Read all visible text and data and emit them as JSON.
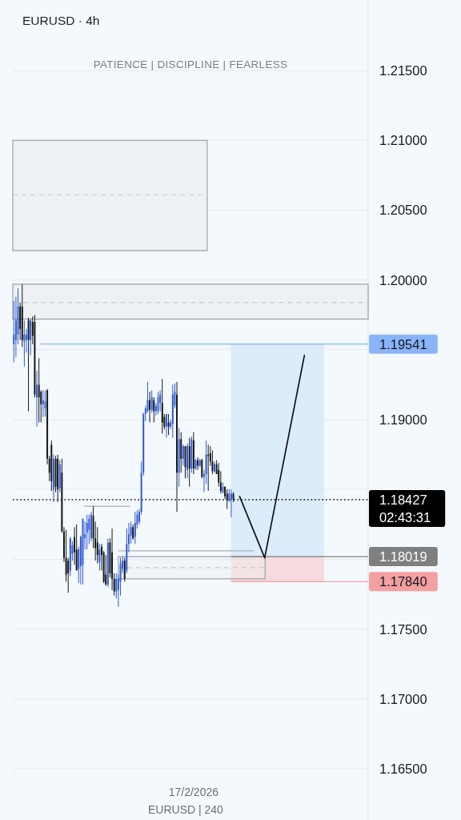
{
  "chart_data": {
    "type": "candlestick",
    "title": "EURUSD · 4h",
    "subtitle": "PATIENCE | DISCIPLINE | FEARLESS",
    "categories": [
      null,
      null,
      null,
      null,
      null,
      null,
      null,
      null,
      null,
      null,
      null,
      null,
      null,
      null,
      null,
      null,
      null,
      null,
      null,
      null,
      null,
      null,
      null,
      null,
      null,
      null,
      null,
      null,
      null,
      null,
      null,
      null,
      null,
      null,
      null,
      null,
      null,
      null,
      null,
      null,
      null,
      null,
      null,
      null,
      null,
      null,
      null,
      null,
      null,
      null,
      null,
      null,
      null,
      null,
      null,
      null,
      null,
      null,
      null,
      null,
      null,
      null,
      null,
      null,
      null,
      null,
      null,
      null,
      null,
      null,
      null,
      null,
      null,
      null,
      null,
      null,
      null,
      null,
      null,
      null,
      null,
      null,
      null,
      null,
      null,
      null,
      null,
      null,
      null,
      null,
      null,
      null,
      null,
      null,
      null,
      null,
      null,
      null,
      null,
      null,
      null,
      null,
      null,
      null,
      null,
      null,
      null,
      null,
      null,
      null,
      null,
      null,
      null,
      null,
      null,
      null,
      null,
      null,
      null,
      null,
      null,
      null,
      null,
      null,
      null,
      null,
      null,
      null,
      null,
      null,
      null,
      null,
      null,
      null,
      null,
      null,
      null,
      null,
      null,
      null,
      null,
      null,
      null,
      null,
      null,
      null,
      null,
      null,
      null,
      null,
      null,
      null,
      null,
      null,
      null,
      null,
      null,
      null,
      null,
      null,
      null,
      null,
      null,
      null,
      null,
      null,
      null,
      null,
      null,
      null
    ],
    "series": [
      {
        "type": "line",
        "color": "#141414",
        "values": [
          null,
          null,
          null,
          null,
          null,
          null,
          null,
          null,
          null,
          null,
          null,
          null,
          null,
          null,
          null,
          null,
          null,
          null,
          null,
          null,
          null,
          null,
          null,
          null,
          null,
          null,
          null,
          null,
          null,
          null,
          null,
          null,
          null,
          null,
          null,
          null,
          null,
          null,
          null,
          null,
          null,
          null,
          null,
          null,
          null,
          null,
          null,
          null,
          null,
          null,
          null,
          null,
          null,
          null,
          null,
          null,
          null,
          null,
          null,
          null,
          null,
          null,
          null,
          null,
          null,
          null,
          null,
          null,
          null,
          null,
          null,
          null,
          null,
          null,
          null,
          null,
          null,
          null,
          null,
          null,
          null,
          null,
          null,
          null,
          null,
          null,
          null,
          null,
          null,
          null,
          null,
          null,
          null,
          null,
          null,
          null,
          null,
          null,
          null,
          null,
          null,
          null,
          null,
          null,
          null,
          null,
          null,
          null,
          1.1845,
          null,
          null,
          null,
          null,
          null,
          null,
          null,
          null,
          null,
          null,
          null,
          1.1801,
          null,
          null,
          null,
          null,
          null,
          null,
          null,
          null,
          null,
          null,
          null,
          null,
          null,
          null,
          null,
          null,
          null,
          null,
          1.1946,
          null,
          null,
          null,
          null,
          null,
          null,
          null,
          null,
          null,
          null,
          null,
          null,
          null,
          null,
          null,
          null,
          null,
          null,
          null,
          null,
          null,
          null,
          null,
          null,
          null,
          null,
          null,
          null,
          null,
          null
        ]
      },
      {
        "type": "candlestick",
        "ohlc": [
          [
            1.1954,
            1.1985,
            1.1941,
            1.1961
          ],
          [
            1.1957,
            1.1988,
            1.1945,
            1.1971
          ],
          [
            1.1961,
            1.1994,
            1.1954,
            1.1981
          ],
          [
            1.1981,
            1.1984,
            1.1957,
            1.1965
          ],
          [
            1.1981,
            1.1997,
            1.1952,
            1.1957
          ],
          [
            1.1956,
            1.1971,
            1.1938,
            1.1961
          ],
          [
            1.1957,
            1.1965,
            1.1948,
            1.1961
          ],
          [
            1.1971,
            1.1973,
            1.1906,
            1.1957
          ],
          [
            1.1957,
            1.1972,
            1.1946,
            1.1971
          ],
          [
            1.197,
            1.1974,
            1.1954,
            1.196
          ],
          [
            1.197,
            1.1975,
            1.1916,
            1.1918
          ],
          [
            1.1916,
            1.1935,
            1.1895,
            1.1925
          ],
          [
            1.1925,
            1.1944,
            1.1898,
            1.1916
          ],
          [
            1.192,
            1.1921,
            1.1898,
            1.1911
          ],
          [
            1.1911,
            1.1921,
            1.1902,
            1.1914
          ],
          [
            1.1908,
            1.1921,
            1.1902,
            1.1913
          ],
          [
            1.1921,
            1.1922,
            1.1868,
            1.1872
          ],
          [
            1.1872,
            1.1874,
            1.1856,
            1.1862
          ],
          [
            1.1882,
            1.1885,
            1.1849,
            1.1856
          ],
          [
            1.185,
            1.1875,
            1.1841,
            1.1872
          ],
          [
            1.1872,
            1.1874,
            1.1848,
            1.1852
          ],
          [
            1.1872,
            1.1875,
            1.1841,
            1.185
          ],
          [
            1.1851,
            1.1871,
            1.1848,
            1.1868
          ],
          [
            1.1862,
            1.1872,
            1.1819,
            1.182
          ],
          [
            1.182,
            1.1823,
            1.1798,
            1.1801
          ],
          [
            1.1801,
            1.1821,
            1.1784,
            1.1789
          ],
          [
            1.1799,
            1.1801,
            1.1776,
            1.179
          ],
          [
            1.1792,
            1.1816,
            1.1788,
            1.1815
          ],
          [
            1.1804,
            1.1813,
            1.1799,
            1.181
          ],
          [
            1.1816,
            1.1823,
            1.1796,
            1.1805
          ],
          [
            1.1807,
            1.1825,
            1.1792,
            1.1792
          ],
          [
            1.1793,
            1.1809,
            1.1783,
            1.1807
          ],
          [
            1.1795,
            1.1817,
            1.1782,
            1.1816
          ],
          [
            1.1796,
            1.1829,
            1.1782,
            1.1829
          ],
          [
            1.1815,
            1.1827,
            1.1807,
            1.1818
          ],
          [
            1.1819,
            1.1832,
            1.1807,
            1.1826
          ],
          [
            1.1821,
            1.1832,
            1.1811,
            1.1829
          ],
          [
            1.1815,
            1.1834,
            1.1813,
            1.1832
          ],
          [
            1.1831,
            1.1838,
            1.1808,
            1.1815
          ],
          [
            1.1815,
            1.1827,
            1.1799,
            1.1808
          ],
          [
            1.1812,
            1.1823,
            1.1797,
            1.1803
          ],
          [
            1.1798,
            1.1811,
            1.1792,
            1.1807
          ],
          [
            1.1809,
            1.1811,
            1.1792,
            1.1803
          ],
          [
            1.1805,
            1.1806,
            1.1783,
            1.1784
          ],
          [
            1.1789,
            1.1803,
            1.1781,
            1.1782
          ],
          [
            1.1782,
            1.1815,
            1.178,
            1.1812
          ],
          [
            1.1812,
            1.1815,
            1.1787,
            1.179
          ],
          [
            1.1805,
            1.1822,
            1.1778,
            1.1786
          ],
          [
            1.1786,
            1.179,
            1.1774,
            1.1777
          ],
          [
            1.1777,
            1.179,
            1.1772,
            1.1786
          ],
          [
            1.1778,
            1.1789,
            1.1766,
            1.1786
          ],
          [
            1.1784,
            1.1801,
            1.1774,
            1.1797
          ],
          [
            1.1793,
            1.1802,
            1.179,
            1.1799
          ],
          [
            1.1799,
            1.1801,
            1.1784,
            1.1786
          ],
          [
            1.1792,
            1.1822,
            1.179,
            1.1811
          ],
          [
            1.1811,
            1.1826,
            1.1805,
            1.1818
          ],
          [
            1.1817,
            1.1827,
            1.1811,
            1.1823
          ],
          [
            1.1823,
            1.1825,
            1.1814,
            1.1815
          ],
          [
            1.1816,
            1.1834,
            1.1811,
            1.1826
          ],
          [
            1.1825,
            1.1835,
            1.1822,
            1.1832
          ],
          [
            1.1827,
            1.1836,
            1.1825,
            1.1834
          ],
          [
            1.1834,
            1.187,
            1.1832,
            1.1862
          ],
          [
            1.1862,
            1.1905,
            1.186,
            1.1904
          ],
          [
            1.1904,
            1.191,
            1.1899,
            1.1908
          ],
          [
            1.1906,
            1.1927,
            1.1905,
            1.1914
          ],
          [
            1.1914,
            1.192,
            1.1898,
            1.1907
          ],
          [
            1.1907,
            1.1921,
            1.1905,
            1.1916
          ],
          [
            1.1914,
            1.1916,
            1.1898,
            1.1906
          ],
          [
            1.1906,
            1.1912,
            1.1903,
            1.191
          ],
          [
            1.1906,
            1.192,
            1.1904,
            1.1916
          ],
          [
            1.1912,
            1.1921,
            1.1906,
            1.1918
          ],
          [
            1.1912,
            1.1929,
            1.189,
            1.1898
          ],
          [
            1.1902,
            1.1904,
            1.1893,
            1.1895
          ],
          [
            1.1895,
            1.1904,
            1.1887,
            1.1904
          ],
          [
            1.1898,
            1.1904,
            1.1889,
            1.1895
          ],
          [
            1.1895,
            1.19,
            1.1893,
            1.1898
          ],
          [
            1.1897,
            1.1925,
            1.1887,
            1.1918
          ],
          [
            1.191,
            1.1926,
            1.1908,
            1.192
          ],
          [
            1.1918,
            1.1927,
            1.1834,
            1.1862
          ],
          [
            1.1862,
            1.1894,
            1.1852,
            1.1886
          ],
          [
            1.1886,
            1.1891,
            1.1862,
            1.1872
          ],
          [
            1.1872,
            1.1882,
            1.1867,
            1.1881
          ],
          [
            1.1881,
            1.1881,
            1.1858,
            1.1866
          ],
          [
            1.1864,
            1.1883,
            1.1858,
            1.1881
          ],
          [
            1.1881,
            1.1887,
            1.1852,
            1.1865
          ],
          [
            1.1865,
            1.1888,
            1.1862,
            1.1886
          ],
          [
            1.1885,
            1.1891,
            1.1861,
            1.1865
          ],
          [
            1.1865,
            1.1872,
            1.1864,
            1.1871
          ],
          [
            1.1871,
            1.1873,
            1.1864,
            1.1867
          ],
          [
            1.1867,
            1.1872,
            1.1866,
            1.1871
          ],
          [
            1.1871,
            1.1872,
            1.1858,
            1.1859
          ],
          [
            1.1859,
            1.1864,
            1.1848,
            1.1861
          ],
          [
            1.1861,
            1.1885,
            1.1854,
            1.1875
          ],
          [
            1.1875,
            1.1882,
            1.1849,
            1.1874
          ],
          [
            1.1876,
            1.1881,
            1.1867,
            1.187
          ],
          [
            1.187,
            1.1878,
            1.1861,
            1.1863
          ],
          [
            1.1863,
            1.187,
            1.1862,
            1.1868
          ],
          [
            1.1868,
            1.1871,
            1.1861,
            1.1861
          ],
          [
            1.1864,
            1.1869,
            1.1852,
            1.1855
          ],
          [
            1.1855,
            1.1863,
            1.1847,
            1.1849
          ],
          [
            1.1848,
            1.1855,
            1.1847,
            1.1852
          ],
          [
            1.1852,
            1.1852,
            1.1843,
            1.1845
          ],
          [
            1.1847,
            1.185,
            1.1836,
            1.1842
          ],
          [
            1.1842,
            1.185,
            1.1841,
            1.1847
          ],
          [
            1.1843,
            1.185,
            1.183,
            1.1847
          ],
          [
            1.1847,
            1.1848,
            1.1841,
            1.1843
          ],
          null,
          null,
          null,
          null,
          null,
          null,
          null,
          null,
          null,
          null,
          null,
          null,
          null,
          null,
          null,
          null,
          null,
          null,
          null,
          null,
          null,
          null,
          null,
          null,
          null,
          null,
          null,
          null,
          null,
          null,
          null,
          null,
          null,
          null,
          null,
          null,
          null,
          null,
          null,
          null,
          null,
          null,
          null,
          null,
          null,
          null,
          null,
          null,
          null,
          null,
          null,
          null,
          null,
          null,
          null,
          null,
          null,
          null,
          null,
          null,
          null,
          null,
          null,
          null
        ],
        "colors": [
          "#2f5bd3",
          "#2f5bd3",
          "#2f5bd3",
          "#161616",
          "#161616",
          "#2f5bd3",
          "#2f5bd3",
          "#161616",
          "#2f5bd3",
          "#161616",
          "#161616",
          "#2f5bd3",
          "#161616",
          "#161616",
          "#2f5bd3",
          "#2f5bd3",
          "#161616",
          "#161616",
          "#161616",
          "#2f5bd3",
          "#161616",
          "#161616",
          "#2f5bd3",
          "#161616",
          "#161616",
          "#161616",
          "#161616",
          "#2f5bd3",
          "#2f5bd3",
          "#161616",
          "#161616",
          "#2f5bd3",
          "#2f5bd3",
          "#2f5bd3",
          "#2f5bd3",
          "#2f5bd3",
          "#2f5bd3",
          "#2f5bd3",
          "#161616",
          "#161616",
          "#161616",
          "#2f5bd3",
          "#161616",
          "#161616",
          "#161616",
          "#2f5bd3",
          "#161616",
          "#161616",
          "#161616",
          "#2f5bd3",
          "#2f5bd3",
          "#2f5bd3",
          "#2f5bd3",
          "#161616",
          "#2f5bd3",
          "#2f5bd3",
          "#2f5bd3",
          "#161616",
          "#2f5bd3",
          "#2f5bd3",
          "#2f5bd3",
          "#2f5bd3",
          "#2f5bd3",
          "#2f5bd3",
          "#2f5bd3",
          "#161616",
          "#2f5bd3",
          "#161616",
          "#2f5bd3",
          "#2f5bd3",
          "#2f5bd3",
          "#161616",
          "#161616",
          "#2f5bd3",
          "#161616",
          "#2f5bd3",
          "#2f5bd3",
          "#2f5bd3",
          "#161616",
          "#2f5bd3",
          "#161616",
          "#2f5bd3",
          "#161616",
          "#2f5bd3",
          "#161616",
          "#2f5bd3",
          "#161616",
          "#2f5bd3",
          "#161616",
          "#2f5bd3",
          "#161616",
          "#2f5bd3",
          "#2f5bd3",
          "#161616",
          "#161616",
          "#161616",
          "#2f5bd3",
          "#161616",
          "#161616",
          "#161616",
          "#2f5bd3",
          "#161616",
          "#161616",
          "#2f5bd3",
          "#2f5bd3",
          "#161616",
          null,
          null,
          null,
          null,
          null,
          null,
          null,
          null,
          null,
          null,
          null,
          null,
          null,
          null,
          null,
          null,
          null,
          null,
          null,
          null,
          null,
          null,
          null,
          null,
          null,
          null,
          null,
          null,
          null,
          null,
          null,
          null,
          null,
          null,
          null,
          null,
          null,
          null,
          null,
          null,
          null,
          null,
          null,
          null,
          null,
          null,
          null,
          null,
          null,
          null,
          null,
          null,
          null,
          null,
          null,
          null,
          null,
          null,
          null,
          null,
          null,
          null,
          null,
          null
        ]
      }
    ],
    "ylim": [
      1.16133,
      1.22005
    ],
    "yticks": [
      {
        "value": 1.165,
        "label": "1.16500"
      },
      {
        "value": 1.17,
        "label": "1.17000"
      },
      {
        "value": 1.175,
        "label": "1.17500"
      },
      {
        "value": 1.18,
        "label": null
      },
      {
        "value": 1.185,
        "label": null
      },
      {
        "value": 1.19,
        "label": "1.19000"
      },
      {
        "value": 1.195,
        "label": null
      },
      {
        "value": 1.2,
        "label": "1.20000"
      },
      {
        "value": 1.205,
        "label": "1.20500"
      },
      {
        "value": 1.21,
        "label": "1.21000"
      },
      {
        "value": 1.215,
        "label": "1.21500"
      }
    ],
    "grid": "y",
    "bands": [
      {
        "axis": "y",
        "from": 1.2021,
        "to": 1.21,
        "color": "#eef1f3"
      },
      {
        "axis": "y",
        "from": 1.1972,
        "to": 1.1997,
        "color": "#eef1f3"
      },
      {
        "axis": "y",
        "from": 1.18019,
        "to": 1.19541,
        "color": "#dcecfb"
      },
      {
        "axis": "y",
        "from": 1.1784,
        "to": 1.18019,
        "color": "#f6d6d9"
      },
      {
        "axis": "y",
        "from": 1.1786,
        "to": 1.18019,
        "color": "#eef1f3"
      }
    ],
    "ref_lines": [
      {
        "axis": "y",
        "value": 1.19541,
        "label": "1.19541",
        "color": "#8ab4f8"
      },
      {
        "axis": "y",
        "value": 1.18427,
        "label": "1.18427\n02:43:31",
        "color": "#000000",
        "line_style": "dotted"
      },
      {
        "axis": "y",
        "value": 1.18019,
        "label": "1.18019",
        "color": "#7f7f7f"
      },
      {
        "axis": "y",
        "value": 1.1784,
        "label": "1.17840",
        "color": "#f4a0a0"
      },
      {
        "axis": "y",
        "value": 1.2061,
        "color": "#c3c8cd",
        "line_style": "dashed"
      },
      {
        "axis": "y",
        "value": 1.1984,
        "color": "#c3c8cd",
        "line_style": "dashed"
      },
      {
        "axis": "y",
        "value": 1.1794,
        "color": "#c3c8cd",
        "line_style": "dashed"
      },
      {
        "axis": "y",
        "value": 1.1838,
        "color": "#a9adb1"
      },
      {
        "axis": "y",
        "value": 1.1806,
        "color": "#a9adb1"
      }
    ],
    "annotations": [
      "17/2/2026",
      "EURUSD | 240"
    ]
  }
}
